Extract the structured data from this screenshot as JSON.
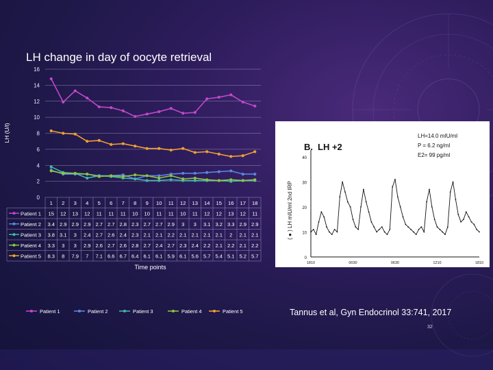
{
  "slide": {
    "title": "LH change in day of oocyte retrieval",
    "citation": "Tannus et al, Gyn Endocrinol 33:741, 2017",
    "slide_number": "32",
    "colors": {
      "bg": "#241a55",
      "accent": "#7a5fbf"
    }
  },
  "chart_data": {
    "type": "line",
    "ylabel": "LH (U/l)",
    "xlabel": "Time points",
    "ylim": [
      0,
      16
    ],
    "yticks": [
      0,
      2,
      4,
      6,
      8,
      10,
      12,
      14,
      16
    ],
    "categories": [
      "1",
      "2",
      "3",
      "4",
      "5",
      "6",
      "7",
      "8",
      "9",
      "10",
      "11",
      "12",
      "13",
      "14",
      "15",
      "16",
      "17",
      "18"
    ],
    "grid": true,
    "legend_position": "bottom",
    "series": [
      {
        "name": "Patient 1",
        "color": "#c048c8",
        "table_values": [
          "15",
          "12",
          "13",
          "12",
          "11",
          "11",
          "11",
          "10",
          "10",
          "11",
          "11",
          "10",
          "11",
          "12",
          "12",
          "13",
          "12",
          "11"
        ],
        "values": [
          14.8,
          11.9,
          13.3,
          12.4,
          11.3,
          11.2,
          10.8,
          10.1,
          10.4,
          10.7,
          11.1,
          10.5,
          10.6,
          12.3,
          12.5,
          12.8,
          11.9,
          11.4
        ]
      },
      {
        "name": "Patient 2",
        "color": "#5b86e0",
        "table_values": [
          "3.4",
          "2.9",
          "2.9",
          "2.9",
          "2.7",
          "2.7",
          "2.8",
          "2.3",
          "2.7",
          "2.7",
          "2.9",
          "3",
          "3",
          "3.1",
          "3.2",
          "3.3",
          "2.9",
          "2.9"
        ],
        "values": [
          3.4,
          2.9,
          2.9,
          2.9,
          2.7,
          2.7,
          2.8,
          2.3,
          2.7,
          2.7,
          2.9,
          3,
          3,
          3.1,
          3.2,
          3.3,
          2.9,
          2.9
        ]
      },
      {
        "name": "Patient 3",
        "color": "#3fb8a8",
        "table_values": [
          "3.8",
          "3.1",
          "3",
          "2.4",
          "2.7",
          "2.6",
          "2.4",
          "2.3",
          "2.1",
          "2.1",
          "2.2",
          "2.1",
          "2.1",
          "2.1",
          "2.1",
          "2",
          "2.1",
          "2.1"
        ],
        "values": [
          3.8,
          3.1,
          3,
          2.4,
          2.7,
          2.6,
          2.4,
          2.3,
          2.1,
          2.1,
          2.2,
          2.1,
          2.1,
          2.1,
          2.1,
          2,
          2.1,
          2.1
        ]
      },
      {
        "name": "Patient 4",
        "color": "#8cc63f",
        "table_values": [
          "3.3",
          "3",
          "3",
          "2.9",
          "2.6",
          "2.7",
          "2.6",
          "2.8",
          "2.7",
          "2.4",
          "2.7",
          "2.3",
          "2.4",
          "2.2",
          "2.1",
          "2.2",
          "2.1",
          "2.2"
        ],
        "values": [
          3.3,
          3,
          3,
          2.9,
          2.6,
          2.7,
          2.6,
          2.8,
          2.7,
          2.4,
          2.7,
          2.3,
          2.4,
          2.2,
          2.1,
          2.2,
          2.1,
          2.2
        ]
      },
      {
        "name": "Patient 5",
        "color": "#f0a030",
        "table_values": [
          "8.3",
          "8",
          "7.9",
          "7",
          "7.1",
          "6.6",
          "6.7",
          "6.4",
          "6.1",
          "6.1",
          "5.9",
          "6.1",
          "5.6",
          "5.7",
          "5.4",
          "5.1",
          "5.2",
          "5.7"
        ],
        "values": [
          8.3,
          8,
          7.9,
          7,
          7.1,
          6.6,
          6.7,
          6.4,
          6.1,
          6.1,
          5.9,
          6.1,
          5.6,
          5.7,
          5.4,
          5.1,
          5.2,
          5.7
        ]
      }
    ]
  },
  "embedded_figure": {
    "panel_label": "B.",
    "panel_title": "LH +2",
    "y_axis_label": "( ● )  LH  mIU/ml   2nd IRP",
    "y_ticks": [
      "0",
      "10",
      "20",
      "30",
      "40"
    ],
    "x_ticks": [
      "1810",
      "0030",
      "0630",
      "1210",
      "1810"
    ],
    "stats": [
      "LH=14.0 mIU/ml",
      "P = 6.2 ng/ml",
      "E2= 99 pg/ml"
    ],
    "pulse_series": [
      10,
      11,
      9,
      14,
      18,
      16,
      12,
      10,
      9,
      11,
      10,
      24,
      30,
      26,
      22,
      20,
      15,
      12,
      11,
      20,
      27,
      22,
      18,
      14,
      12,
      10,
      11,
      12,
      10,
      9,
      11,
      28,
      31,
      24,
      20,
      16,
      13,
      12,
      11,
      10,
      9,
      11,
      12,
      10,
      22,
      27,
      20,
      15,
      12,
      11,
      10,
      9,
      12,
      26,
      30,
      23,
      17,
      14,
      15,
      18,
      16,
      14,
      13,
      11,
      10
    ]
  }
}
